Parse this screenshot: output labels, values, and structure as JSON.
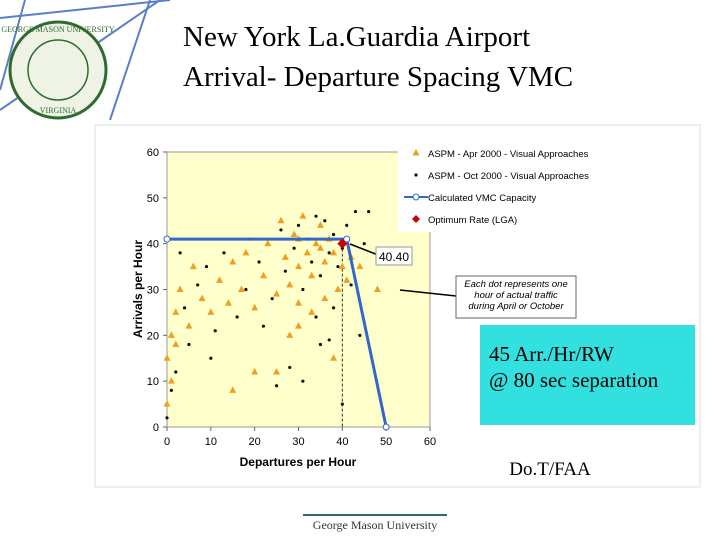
{
  "slide": {
    "title_lines": [
      "New York La.Guardia Airport",
      "Arrival- Departure Spacing VMC"
    ],
    "footer": "George Mason University",
    "logo": {
      "top": "GEORGE MASON UNIVERSITY",
      "bottom": "VIRGINIA"
    }
  },
  "chart_data": {
    "type": "scatter",
    "x_label": "Departures per Hour",
    "y_label": "Arrivals per Hour",
    "xlim": [
      0,
      60
    ],
    "ylim": [
      0,
      60
    ],
    "xticks": [
      0,
      10,
      20,
      30,
      40,
      50,
      60
    ],
    "yticks": [
      0,
      10,
      20,
      30,
      40,
      50,
      60
    ],
    "plot_background": "#ffffcc",
    "series": [
      {
        "name": "ASPM - Apr 2000 - Visual Approaches",
        "color": "#f0a020",
        "marker": "triangle",
        "x": [
          0,
          0,
          1,
          1,
          2,
          2,
          3,
          5,
          6,
          8,
          10,
          12,
          14,
          15,
          17,
          18,
          20,
          22,
          23,
          25,
          26,
          27,
          28,
          29,
          30,
          30,
          31,
          32,
          33,
          34,
          35,
          36,
          37,
          38,
          39,
          40,
          41,
          42,
          30,
          28,
          25,
          33,
          36,
          38,
          44,
          48,
          30,
          35,
          20,
          15
        ],
        "values": [
          5,
          15,
          10,
          20,
          18,
          25,
          30,
          22,
          35,
          28,
          25,
          32,
          27,
          36,
          30,
          38,
          26,
          33,
          40,
          29,
          45,
          37,
          31,
          42,
          35,
          27,
          46,
          38,
          33,
          40,
          44,
          36,
          41,
          38,
          30,
          35,
          32,
          37,
          22,
          20,
          12,
          25,
          28,
          15,
          35,
          30,
          41,
          39,
          12,
          8
        ]
      },
      {
        "name": "ASPM - Oct 2000 - Visual Approaches",
        "color": "#111111",
        "marker": "dot",
        "x": [
          0,
          1,
          2,
          4,
          5,
          7,
          9,
          11,
          13,
          16,
          19,
          21,
          24,
          26,
          27,
          29,
          30,
          31,
          32,
          33,
          34,
          35,
          36,
          37,
          38,
          39,
          40,
          41,
          42,
          43,
          45,
          46,
          28,
          25,
          22,
          18,
          35,
          38,
          40,
          44,
          10,
          3,
          31,
          34,
          37
        ],
        "values": [
          2,
          8,
          12,
          26,
          18,
          31,
          35,
          21,
          38,
          24,
          41,
          36,
          28,
          43,
          34,
          39,
          44,
          30,
          41,
          36,
          46,
          33,
          45,
          38,
          42,
          35,
          39,
          44,
          31,
          47,
          40,
          47,
          13,
          9,
          22,
          30,
          18,
          26,
          5,
          20,
          15,
          38,
          10,
          24,
          19
        ]
      },
      {
        "name": "Calculated VMC Capacity",
        "color": "#3366cc",
        "marker": "line",
        "x": [
          0,
          41,
          50
        ],
        "values": [
          41,
          41,
          0
        ]
      },
      {
        "name": "Optimum Rate (LGA)",
        "color": "#cc0000",
        "marker": "diamond",
        "x": [
          40
        ],
        "values": [
          40
        ]
      }
    ],
    "annotations": {
      "point_label": "40.40",
      "note_lines": [
        "Each dot represents one",
        "hour of actual traffic",
        "during April or October"
      ],
      "callout_lines": [
        "45 Arr./Hr/RW",
        "@ 80 sec separation"
      ],
      "source": "Do.T/FAA"
    }
  }
}
